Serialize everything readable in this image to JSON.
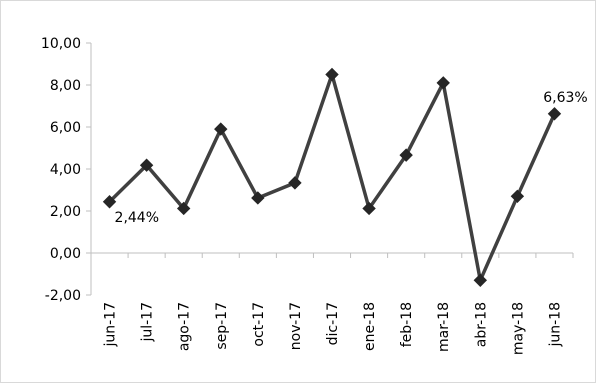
{
  "chart_data": {
    "type": "line",
    "categories": [
      "jun-17",
      "jul-17",
      "ago-17",
      "sep-17",
      "oct-17",
      "nov-17",
      "dic-17",
      "ene-18",
      "feb-18",
      "mar-18",
      "abr-18",
      "may-18",
      "jun-18"
    ],
    "values": [
      2.44,
      4.18,
      2.12,
      5.9,
      2.62,
      3.34,
      8.5,
      2.12,
      4.66,
      8.1,
      -1.3,
      2.7,
      6.63
    ],
    "y_tick_labels": [
      "-2,00",
      "0,00",
      "2,00",
      "4,00",
      "6,00",
      "8,00",
      "10,00"
    ],
    "y_ticks": [
      -2,
      0,
      2,
      4,
      6,
      8,
      10
    ],
    "ylim": [
      -2,
      10
    ],
    "data_labels": [
      {
        "index": 0,
        "text": "2,44%"
      },
      {
        "index": 12,
        "text": "6,63%"
      }
    ],
    "title": "",
    "xlabel": "",
    "ylabel": "",
    "grid": false,
    "legend": "none",
    "line_color": "#404040",
    "marker": "diamond"
  }
}
